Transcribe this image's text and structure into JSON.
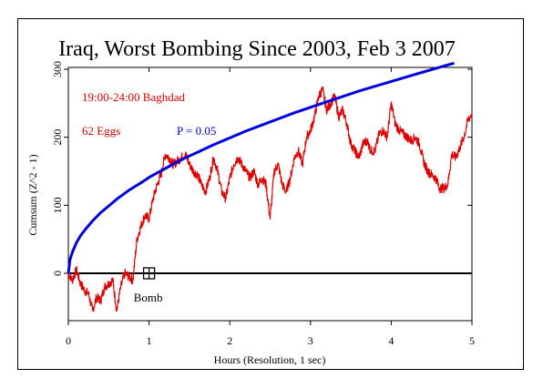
{
  "chart_data": {
    "type": "line",
    "title": "Iraq, Worst Bombing Since 2003, Feb 3 2007",
    "xlabel": "Hours (Resolution, 1 sec)",
    "ylabel": "Cumsum (Z^2 - 1)",
    "xlim": [
      0,
      5
    ],
    "ylim": [
      -70,
      300
    ],
    "x_ticks": [
      "0",
      "1",
      "2",
      "3",
      "4",
      "5"
    ],
    "y_ticks": [
      "0",
      "100",
      "200",
      "300"
    ],
    "annotations": {
      "window": "19:00-24:00 Baghdad",
      "eggs": "62 Eggs",
      "p_label": "P = 0.05",
      "marker_label": "Bomb"
    },
    "marker": {
      "x": 1.0,
      "y": 0
    },
    "series": [
      {
        "color": "#dd0000",
        "x": [
          0.0,
          0.05,
          0.1,
          0.15,
          0.2,
          0.25,
          0.3,
          0.35,
          0.4,
          0.45,
          0.5,
          0.55,
          0.6,
          0.65,
          0.7,
          0.75,
          0.8,
          0.85,
          0.9,
          0.95,
          1.0,
          1.05,
          1.1,
          1.15,
          1.2,
          1.25,
          1.3,
          1.35,
          1.4,
          1.45,
          1.5,
          1.55,
          1.6,
          1.65,
          1.7,
          1.75,
          1.8,
          1.85,
          1.9,
          1.95,
          2.0,
          2.05,
          2.1,
          2.15,
          2.2,
          2.25,
          2.3,
          2.35,
          2.4,
          2.45,
          2.5,
          2.55,
          2.6,
          2.65,
          2.7,
          2.75,
          2.8,
          2.85,
          2.9,
          2.95,
          3.0,
          3.05,
          3.1,
          3.15,
          3.2,
          3.25,
          3.3,
          3.35,
          3.4,
          3.45,
          3.5,
          3.55,
          3.6,
          3.65,
          3.7,
          3.75,
          3.8,
          3.85,
          3.9,
          3.95,
          4.0,
          4.05,
          4.1,
          4.15,
          4.2,
          4.25,
          4.3,
          4.35,
          4.4,
          4.45,
          4.5,
          4.55,
          4.6,
          4.65,
          4.7,
          4.75,
          4.8,
          4.85,
          4.9,
          4.95,
          5.0
        ],
        "y": [
          0,
          -10,
          5,
          -15,
          -25,
          -30,
          -55,
          -35,
          -40,
          -20,
          -15,
          -10,
          -55,
          -20,
          0,
          -5,
          -10,
          50,
          70,
          85,
          80,
          110,
          130,
          145,
          175,
          170,
          160,
          165,
          170,
          175,
          160,
          150,
          145,
          130,
          120,
          140,
          170,
          150,
          120,
          110,
          140,
          160,
          170,
          160,
          150,
          140,
          150,
          130,
          140,
          130,
          80,
          150,
          160,
          130,
          120,
          140,
          170,
          180,
          160,
          200,
          210,
          230,
          260,
          270,
          240,
          250,
          260,
          230,
          240,
          220,
          190,
          180,
          170,
          190,
          195,
          180,
          180,
          205,
          210,
          200,
          250,
          220,
          210,
          205,
          200,
          195,
          200,
          190,
          165,
          150,
          145,
          140,
          125,
          125,
          130,
          175,
          170,
          185,
          200,
          225,
          235
        ]
      },
      {
        "name": "P = 0.05",
        "color": "#0000dd",
        "x": [
          0.0,
          0.02,
          0.05,
          0.1,
          0.15,
          0.2,
          0.3,
          0.4,
          0.5,
          0.6,
          0.75,
          0.9,
          1.0,
          1.2,
          1.4,
          1.6,
          1.8,
          2.0,
          2.2,
          2.4,
          2.6,
          2.8,
          3.0,
          3.2,
          3.4,
          3.6,
          3.8,
          4.0,
          4.2,
          4.4,
          4.6,
          4.78
        ],
        "y": [
          0,
          20,
          31,
          45,
          55,
          63,
          77,
          89,
          99,
          109,
          122,
          133,
          141,
          154,
          167,
          178,
          189,
          199,
          209,
          218,
          227,
          236,
          244,
          252,
          260,
          268,
          275,
          282,
          289,
          296,
          303,
          309
        ]
      }
    ]
  }
}
